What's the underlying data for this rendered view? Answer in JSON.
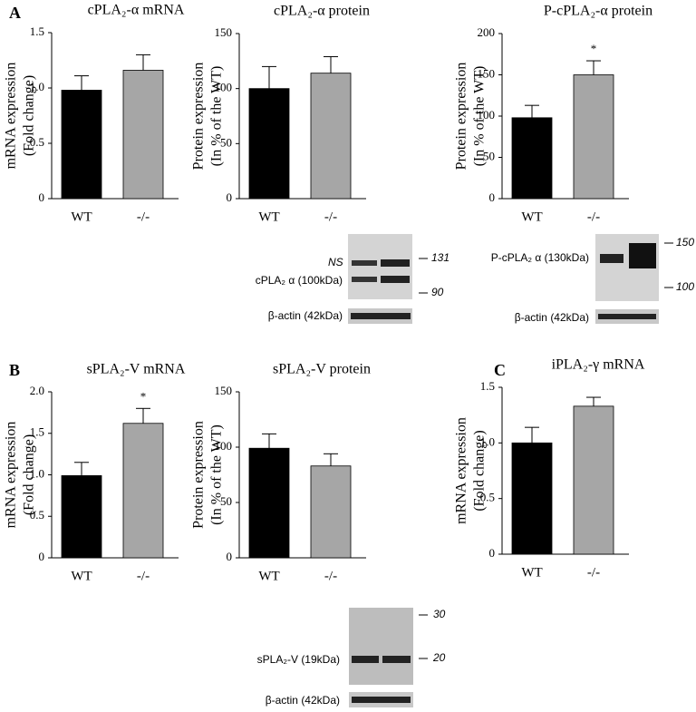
{
  "panels": [
    "A",
    "B",
    "C"
  ],
  "chart_data": [
    {
      "type": "bar",
      "title": "cPLA₂-α mRNA",
      "ylabel": [
        "mRNA expression",
        "(Fold change)"
      ],
      "categories": [
        "WT",
        "-/-"
      ],
      "values": [
        0.98,
        1.16
      ],
      "errors": [
        0.13,
        0.14
      ],
      "colors": [
        "#000000",
        "#a6a6a6"
      ],
      "ylim": [
        0,
        1.5
      ],
      "yticks": [
        0,
        0.5,
        {
          "value": 1,
          "label": "1.0"
        },
        1.5
      ]
    },
    {
      "type": "bar",
      "title": "cPLA₂-α protein",
      "ylabel": [
        "Protein expression",
        "(In % of the WT)"
      ],
      "categories": [
        "WT",
        "-/-"
      ],
      "values": [
        100,
        114
      ],
      "errors": [
        20,
        15
      ],
      "colors": [
        "#000000",
        "#a6a6a6"
      ],
      "ylim": [
        0,
        150
      ],
      "yticks": [
        0,
        50,
        100,
        150
      ]
    },
    {
      "type": "bar",
      "title": "P-cPLA₂-α protein",
      "ylabel": [
        "Protein expression",
        "(In % of the WT)"
      ],
      "categories": [
        "WT",
        "-/-"
      ],
      "values": [
        98,
        150
      ],
      "errors": [
        15,
        17
      ],
      "colors": [
        "#000000",
        "#a6a6a6"
      ],
      "ylim": [
        0,
        200
      ],
      "yticks": [
        0,
        50,
        100,
        150,
        200
      ],
      "annotation": "*"
    },
    {
      "type": "bar",
      "title": "sPLA₂-V mRNA",
      "ylabel": [
        "mRNA expression",
        "(Fold change)"
      ],
      "categories": [
        "WT",
        "-/-"
      ],
      "values": [
        0.99,
        1.62
      ],
      "errors": [
        0.16,
        0.18
      ],
      "colors": [
        "#000000",
        "#a6a6a6"
      ],
      "ylim": [
        0,
        2
      ],
      "yticks": [
        0,
        0.5,
        {
          "value": 1,
          "label": "1.0"
        },
        1.5,
        {
          "value": 2,
          "label": "2.0"
        }
      ],
      "annotation": "*"
    },
    {
      "type": "bar",
      "title": "sPLA₂-V protein",
      "ylabel": [
        "Protein expression",
        "(In % of the WT)"
      ],
      "categories": [
        "WT",
        "-/-"
      ],
      "values": [
        99,
        83
      ],
      "errors": [
        13,
        11
      ],
      "colors": [
        "#000000",
        "#a6a6a6"
      ],
      "ylim": [
        0,
        150
      ],
      "yticks": [
        0,
        50,
        100,
        150
      ]
    },
    {
      "type": "bar",
      "title": "iPLA₂-γ mRNA",
      "ylabel": [
        "mRNA expression",
        "(Fold change)"
      ],
      "categories": [
        "WT",
        "-/-"
      ],
      "values": [
        1.0,
        1.33
      ],
      "errors": [
        0.14,
        0.08
      ],
      "colors": [
        "#000000",
        "#a6a6a6"
      ],
      "ylim": [
        0,
        1.5
      ],
      "yticks": [
        0,
        0.5,
        {
          "value": 1,
          "label": "1.0"
        },
        1.5
      ]
    }
  ],
  "blots": [
    {
      "ns": "NS",
      "markers": [
        131,
        90
      ],
      "protein": "cPLA₂ α (100kDa)",
      "actin": "β-actin (42kDa)"
    },
    {
      "markers": [
        150,
        100
      ],
      "protein": "P-cPLA₂ α (130kDa)",
      "actin": "β-actin (42kDa)"
    },
    {
      "markers": [
        30,
        20
      ],
      "protein": "sPLA₂-V  (19kDa)",
      "actin": "β-actin (42kDa)"
    }
  ]
}
